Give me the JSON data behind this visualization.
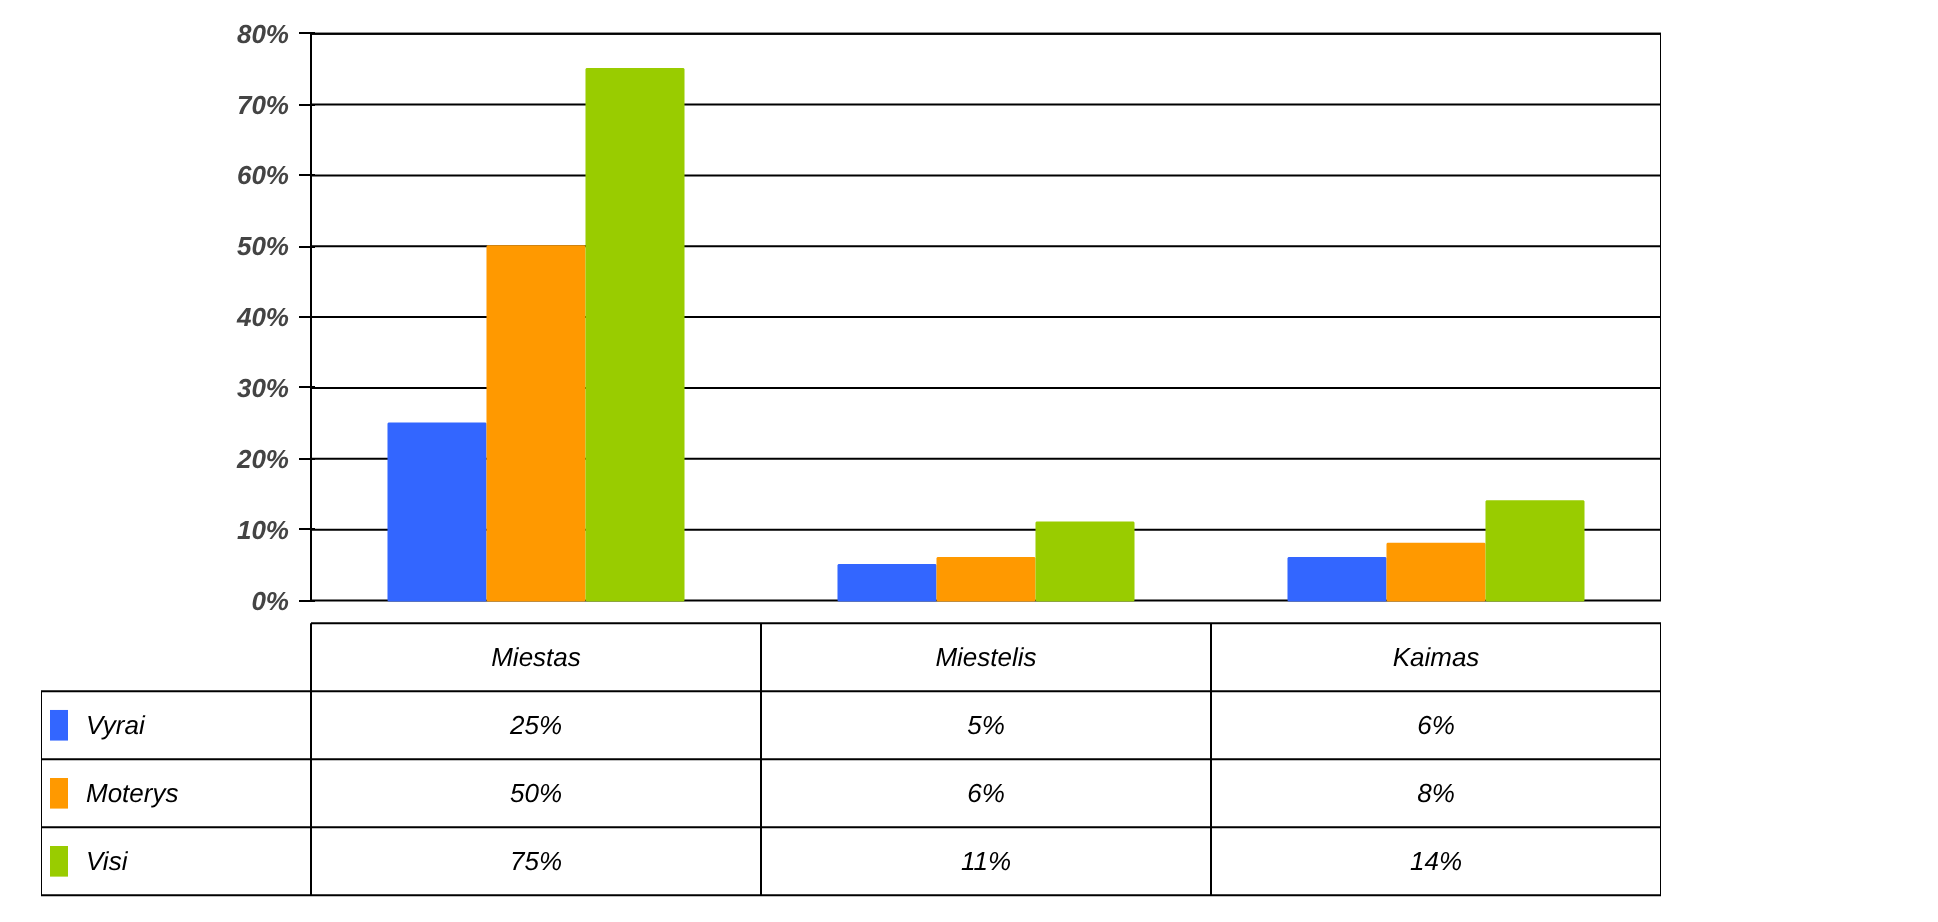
{
  "chart_data": {
    "type": "bar",
    "categories": [
      "Miestas",
      "Miestelis",
      "Kaimas"
    ],
    "series": [
      {
        "name": "Vyrai",
        "color": "#3366ff",
        "values": [
          25,
          5,
          6
        ],
        "value_labels": [
          "25%",
          "5%",
          "6%"
        ]
      },
      {
        "name": "Moterys",
        "color": "#ff9900",
        "values": [
          50,
          6,
          8
        ],
        "value_labels": [
          "50%",
          "6%",
          "8%"
        ]
      },
      {
        "name": "Visi",
        "color": "#99cc00",
        "values": [
          75,
          11,
          14
        ],
        "value_labels": [
          "75%",
          "11%",
          "14%"
        ]
      }
    ],
    "ylim": [
      0,
      80
    ],
    "yticks": [
      {
        "value": 0,
        "label": "0%"
      },
      {
        "value": 10,
        "label": "10%"
      },
      {
        "value": 20,
        "label": "20%"
      },
      {
        "value": 30,
        "label": "30%"
      },
      {
        "value": 40,
        "label": "40%"
      },
      {
        "value": 50,
        "label": "50%"
      },
      {
        "value": 60,
        "label": "60%"
      },
      {
        "value": 70,
        "label": "70%"
      },
      {
        "value": 80,
        "label": "80%"
      }
    ],
    "grid": "y",
    "legend": "bottom left"
  }
}
